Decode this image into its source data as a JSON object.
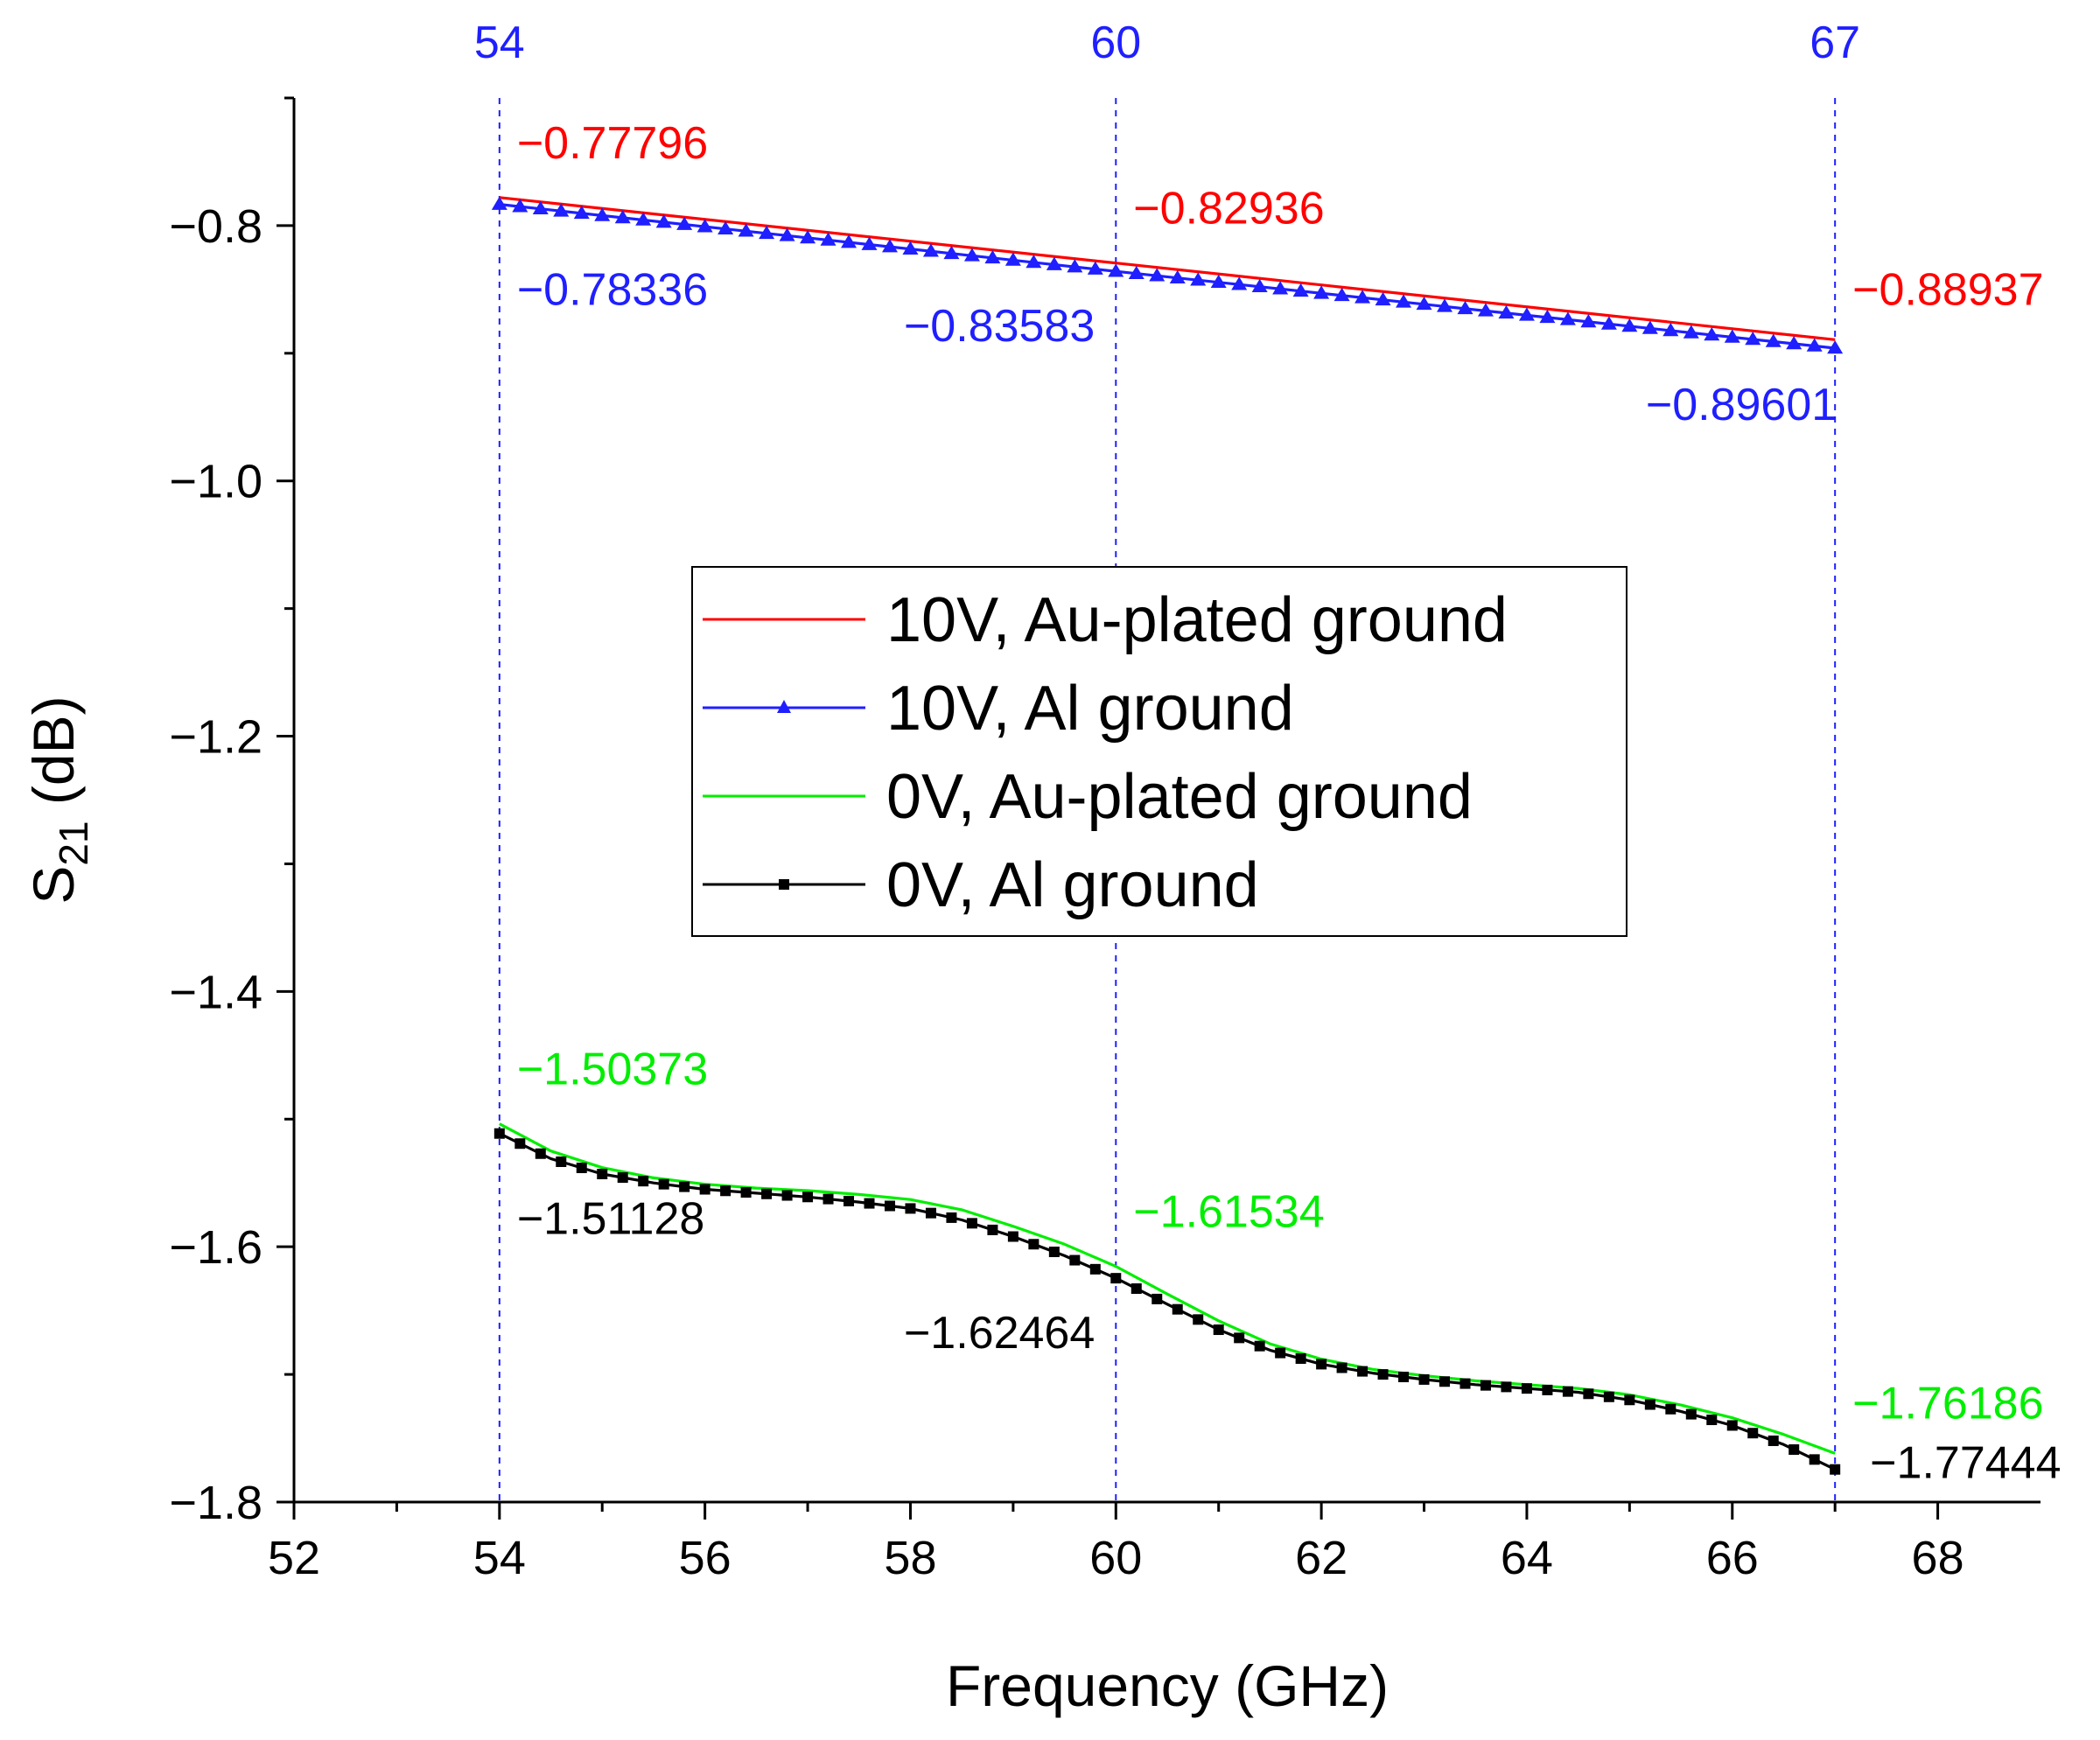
{
  "chart_data": {
    "type": "line",
    "title": "",
    "xlabel": "Frequency (GHz)",
    "ylabel": "S",
    "ylabel_subscript": "21",
    "ylabel_unit": " (dB)",
    "xlim": [
      52,
      69
    ],
    "ylim": [
      -1.8,
      -0.7
    ],
    "xticks": [
      52,
      54,
      56,
      58,
      60,
      62,
      64,
      66,
      68
    ],
    "xtick_labels": [
      "52",
      "54",
      "56",
      "58",
      "60",
      "62",
      "64",
      "66",
      "68"
    ],
    "yticks": [
      -0.8,
      -1.0,
      -1.2,
      -1.4,
      -1.6,
      -1.8
    ],
    "ytick_labels": [
      "−0.8",
      "−1.0",
      "−1.2",
      "−1.4",
      "−1.6",
      "−1.8"
    ],
    "grid": false,
    "legend_position": "center",
    "vertical_markers": [
      {
        "x": 54,
        "label": "54",
        "color": "#1f1fff"
      },
      {
        "x": 60,
        "label": "60",
        "color": "#1f1fff"
      },
      {
        "x": 67,
        "label": "67",
        "color": "#1f1fff"
      }
    ],
    "series": [
      {
        "name": "10V, Au-plated ground",
        "color": "#ff0000",
        "marker": "none",
        "x": [
          54,
          60,
          67
        ],
        "y": [
          -0.77796,
          -0.82936,
          -0.88937
        ]
      },
      {
        "name": "10V, Al ground",
        "color": "#1f1fff",
        "marker": "triangle",
        "x": [
          54,
          60,
          67
        ],
        "y": [
          -0.78336,
          -0.83583,
          -0.89601
        ]
      },
      {
        "name": "0V, Au-plated ground",
        "color": "#00ee00",
        "marker": "none",
        "x": [
          54,
          54.5,
          55,
          55.5,
          56,
          56.5,
          57,
          57.5,
          58,
          58.5,
          59,
          59.5,
          60,
          60.5,
          61,
          61.5,
          62,
          62.5,
          63,
          63.5,
          64,
          64.5,
          65,
          65.5,
          66,
          66.5,
          67
        ],
        "y": [
          -1.50373,
          -1.525,
          -1.538,
          -1.546,
          -1.551,
          -1.554,
          -1.556,
          -1.559,
          -1.563,
          -1.571,
          -1.584,
          -1.598,
          -1.61534,
          -1.637,
          -1.658,
          -1.676,
          -1.688,
          -1.696,
          -1.701,
          -1.705,
          -1.708,
          -1.711,
          -1.716,
          -1.724,
          -1.734,
          -1.747,
          -1.76186
        ]
      },
      {
        "name": "0V, Al ground",
        "color": "#000000",
        "marker": "square",
        "x": [
          54,
          54.5,
          55,
          55.5,
          56,
          56.5,
          57,
          57.5,
          58,
          58.5,
          59,
          59.5,
          60,
          60.5,
          61,
          61.5,
          62,
          62.5,
          63,
          63.5,
          64,
          64.5,
          65,
          65.5,
          66,
          66.5,
          67
        ],
        "y": [
          -1.51128,
          -1.531,
          -1.543,
          -1.55,
          -1.555,
          -1.558,
          -1.561,
          -1.565,
          -1.57,
          -1.579,
          -1.592,
          -1.607,
          -1.62464,
          -1.645,
          -1.665,
          -1.681,
          -1.692,
          -1.699,
          -1.704,
          -1.708,
          -1.711,
          -1.714,
          -1.72,
          -1.729,
          -1.74,
          -1.755,
          -1.77444
        ]
      }
    ],
    "annotations": [
      {
        "text": "−0.77796",
        "x": 54,
        "y": -0.77796,
        "color": "#ff0000",
        "pos": "above-right"
      },
      {
        "text": "−0.82936",
        "x": 60,
        "y": -0.82936,
        "color": "#ff0000",
        "pos": "above-right"
      },
      {
        "text": "−0.88937",
        "x": 67,
        "y": -0.88937,
        "color": "#ff0000",
        "pos": "above-right"
      },
      {
        "text": "−0.78336",
        "x": 54,
        "y": -0.78336,
        "color": "#1f1fff",
        "pos": "below-right"
      },
      {
        "text": "−0.83583",
        "x": 60,
        "y": -0.83583,
        "color": "#1f1fff",
        "pos": "below-left"
      },
      {
        "text": "−0.89601",
        "x": 67,
        "y": -0.89601,
        "color": "#1f1fff",
        "pos": "below-left"
      },
      {
        "text": "−1.50373",
        "x": 54,
        "y": -1.50373,
        "color": "#00ee00",
        "pos": "above-right"
      },
      {
        "text": "−1.61534",
        "x": 60,
        "y": -1.61534,
        "color": "#00ee00",
        "pos": "above-right"
      },
      {
        "text": "−1.76186",
        "x": 67,
        "y": -1.76186,
        "color": "#00ee00",
        "pos": "above-right"
      },
      {
        "text": "−1.51128",
        "x": 54,
        "y": -1.51128,
        "color": "#000000",
        "pos": "below-right"
      },
      {
        "text": "−1.62464",
        "x": 60,
        "y": -1.62464,
        "color": "#000000",
        "pos": "below-left"
      },
      {
        "text": "−1.77444",
        "x": 67,
        "y": -1.77444,
        "color": "#000000",
        "pos": "right"
      }
    ]
  }
}
